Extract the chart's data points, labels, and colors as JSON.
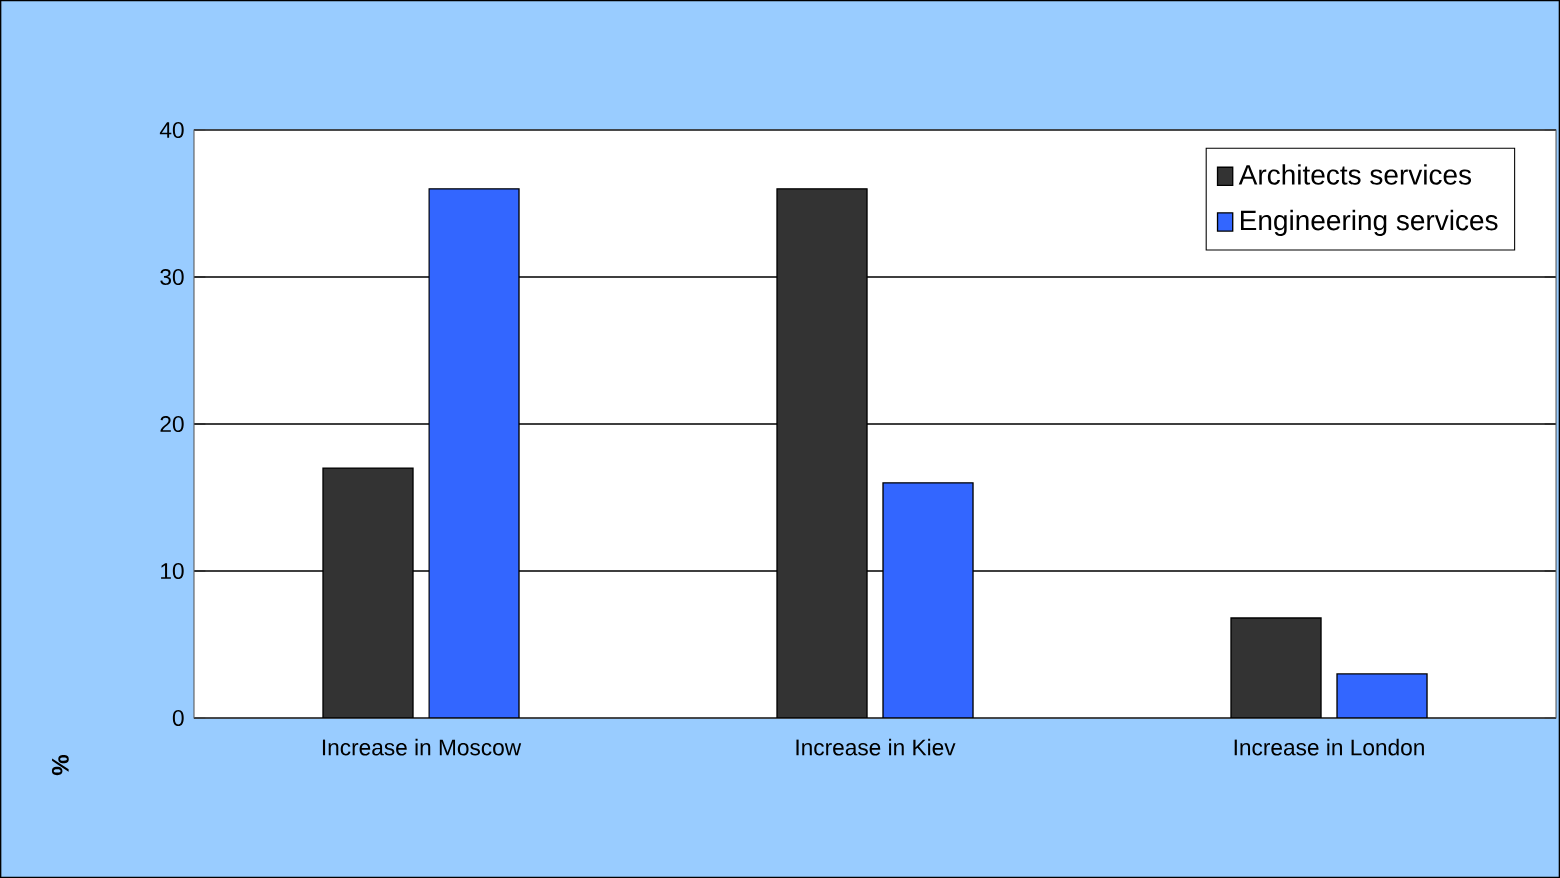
{
  "chart_data": {
    "type": "bar",
    "ylabel": "%",
    "categories": [
      "Increase in Moscow",
      "Increase in Kiev",
      "Increase in London"
    ],
    "series": [
      {
        "name": "Architects services",
        "color": "#333333",
        "values": [
          17,
          36,
          6.8
        ]
      },
      {
        "name": "Engineering services",
        "color": "#3366ff",
        "values": [
          36,
          16,
          3
        ]
      }
    ],
    "ylim": [
      0,
      40
    ],
    "yticks": [
      0,
      10,
      20,
      30,
      40
    ],
    "grid": "y",
    "legend": "top right"
  }
}
